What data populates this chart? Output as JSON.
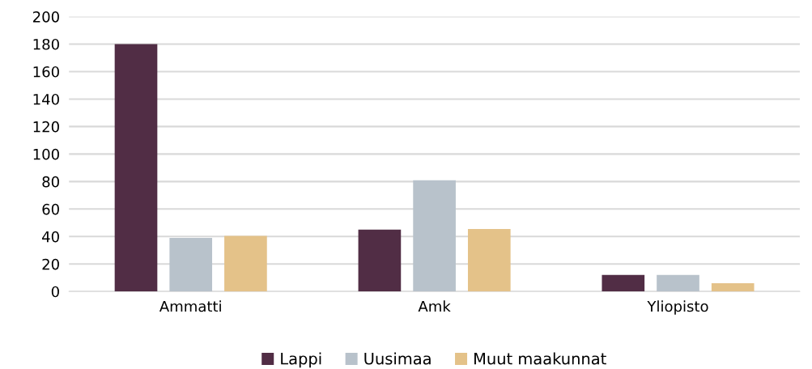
{
  "chart_data": {
    "type": "bar",
    "categories": [
      "Ammatti",
      "Amk",
      "Yliopisto"
    ],
    "series": [
      {
        "name": "Lappi",
        "color": "#512d45",
        "values": [
          180,
          45,
          12
        ]
      },
      {
        "name": "Uusimaa",
        "color": "#b8c2cb",
        "values": [
          39,
          81,
          12
        ]
      },
      {
        "name": "Muut maakunnat",
        "color": "#e4c289",
        "values": [
          40.5,
          45.5,
          6
        ]
      }
    ],
    "ylim": [
      0,
      200
    ],
    "yticks": [
      0,
      20,
      40,
      60,
      80,
      100,
      120,
      140,
      160,
      180,
      200
    ],
    "grid": "y",
    "legend": "bottom"
  }
}
